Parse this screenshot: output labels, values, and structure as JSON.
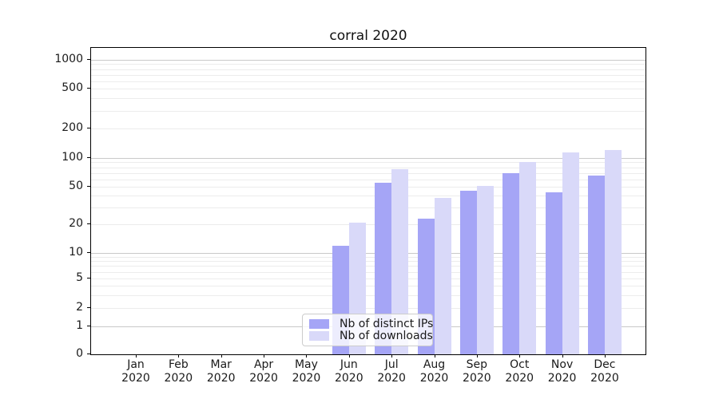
{
  "chart_data": {
    "type": "bar",
    "title": "corral 2020",
    "categories": [
      "Jan",
      "Feb",
      "Mar",
      "Apr",
      "May",
      "Jun",
      "Jul",
      "Aug",
      "Sep",
      "Oct",
      "Nov",
      "Dec"
    ],
    "category_year": "2020",
    "series": [
      {
        "name": "Nb of distinct IPs",
        "color": "#a5a5f6",
        "values": [
          0,
          0,
          0,
          0,
          0,
          12,
          55,
          23,
          45,
          70,
          44,
          65
        ]
      },
      {
        "name": "Nb of downloads",
        "color": "#d9d9f9",
        "values": [
          0,
          0,
          0,
          0,
          0,
          21,
          77,
          38,
          51,
          90,
          113,
          120
        ]
      }
    ],
    "yscale": "symlog",
    "yticks": [
      0,
      1,
      2,
      5,
      10,
      20,
      50,
      100,
      200,
      500,
      1000
    ],
    "ylim": [
      0,
      1200
    ],
    "xlabel": "",
    "ylabel": "",
    "grid": true,
    "legend_position": "lower center"
  },
  "colors": {
    "grid_minor": "#ececec",
    "grid_major": "#c9c9c9",
    "axis": "#000000",
    "text": "#1a1a1a",
    "legend_border": "#cccccc"
  }
}
